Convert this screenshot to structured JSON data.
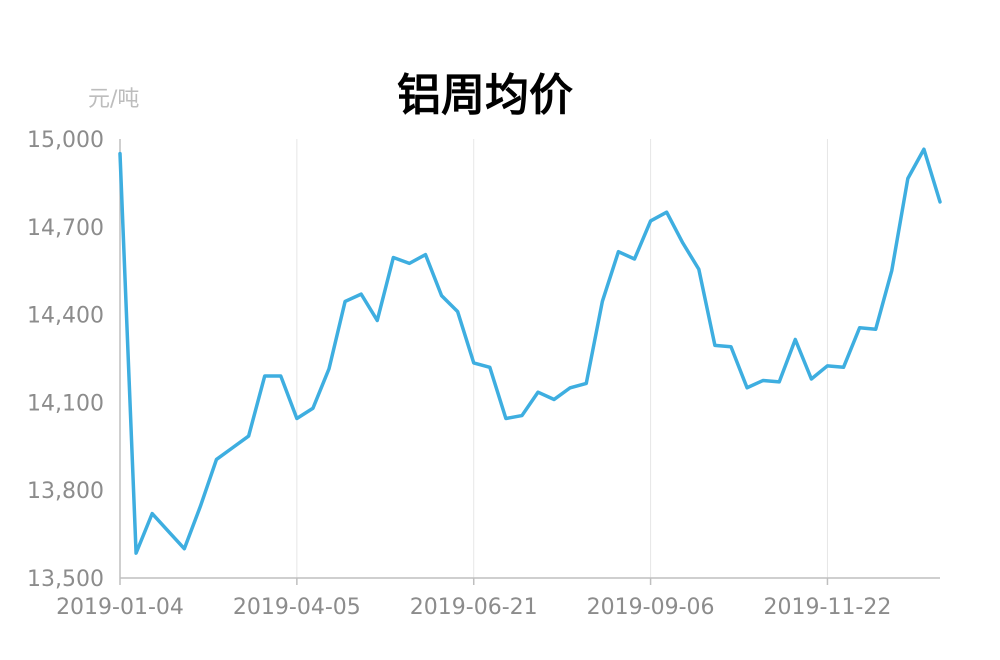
{
  "chart_data": {
    "type": "line",
    "title": "铝周均价",
    "ylabel": "元/吨",
    "xlabel": "",
    "ylim": [
      13500,
      15000
    ],
    "yticks": [
      "15,000",
      "14,700",
      "14,400",
      "14,100",
      "13,800",
      "13,500"
    ],
    "ytick_values": [
      15000,
      14700,
      14400,
      14100,
      13800,
      13500
    ],
    "xtick_labels": [
      "2019-01-04",
      "2019-04-05",
      "2019-06-21",
      "2019-09-06",
      "2019-11-22"
    ],
    "xtick_indices": [
      0,
      11,
      22,
      33,
      44
    ],
    "grid": "vertical",
    "colors": {
      "line": "#3eaee0",
      "grid": "#e6e6e6",
      "axis": "#bfbfbf"
    },
    "series": [
      {
        "values": [
          14950,
          13585,
          13720,
          13660,
          13600,
          13745,
          13905,
          13945,
          13985,
          14190,
          14190,
          14045,
          14080,
          14215,
          14445,
          14470,
          14380,
          14595,
          14575,
          14605,
          14465,
          14410,
          14235,
          14220,
          14045,
          14055,
          14135,
          14110,
          14150,
          14165,
          14445,
          14615,
          14590,
          14720,
          14750,
          14645,
          14555,
          14295,
          14290,
          14150,
          14175,
          14170,
          14315,
          14180,
          14225,
          14220,
          14355,
          14350,
          14550,
          14865,
          14965,
          14785
        ]
      }
    ]
  }
}
